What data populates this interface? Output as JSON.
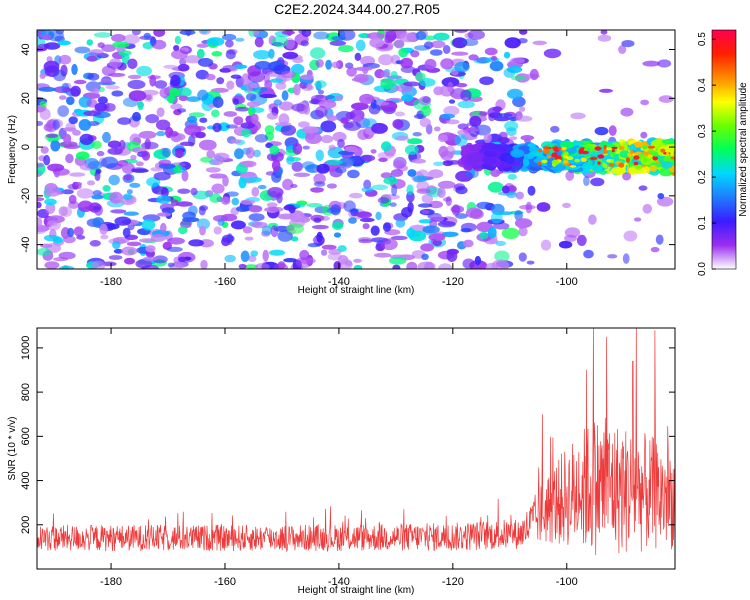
{
  "title": "C2E2.2024.344.00.27.R05",
  "chart_data": [
    {
      "type": "heatmap",
      "xlabel": "Height of straight line (km)",
      "ylabel": "Frequency (Hz)",
      "xlim": [
        -193,
        -81
      ],
      "ylim": [
        -50,
        48
      ],
      "xticks": [
        -180,
        -160,
        -140,
        -120,
        -100
      ],
      "yticks": [
        -40,
        -20,
        0,
        20,
        40
      ],
      "colorbar": {
        "label": "Normalized spectral amplitude",
        "range": [
          0.0,
          0.52
        ],
        "ticks": [
          "0.0",
          "0.1",
          "0.2",
          "0.3",
          "0.4",
          "0.5"
        ],
        "colors": [
          "#ffffff",
          "#9a2ef0",
          "#3a1cff",
          "#1f7dff",
          "#00d8ff",
          "#00ff5a",
          "#6aff00",
          "#ffff00",
          "#ff8a00",
          "#ff2000",
          "#ff0050"
        ]
      },
      "features": {
        "noise_region_x": [
          -193,
          -106
        ],
        "quiet_region_x": [
          -106,
          -81
        ],
        "signal_band_center_hz": -4,
        "signal_band_halfwidth_hz": 5,
        "signal_start_x": -118,
        "peak_amplitude": 0.52
      }
    },
    {
      "type": "line",
      "xlabel": "Height of straight line (km)",
      "ylabel": "SNR (10 * v/v)",
      "xlim": [
        -193,
        -81
      ],
      "ylim": [
        0,
        1090
      ],
      "xticks": [
        -180,
        -160,
        -140,
        -120,
        -100
      ],
      "yticks": [
        200,
        400,
        600,
        800,
        1000
      ],
      "color": "#ee3a3a",
      "envelope": [
        {
          "x": -193,
          "mean": 140,
          "spread": 60
        },
        {
          "x": -150,
          "mean": 140,
          "spread": 60
        },
        {
          "x": -120,
          "mean": 145,
          "spread": 65
        },
        {
          "x": -108,
          "mean": 160,
          "spread": 70
        },
        {
          "x": -104,
          "mean": 260,
          "spread": 150
        },
        {
          "x": -100,
          "mean": 330,
          "spread": 230
        },
        {
          "x": -95,
          "mean": 380,
          "spread": 320
        },
        {
          "x": -90,
          "mean": 360,
          "spread": 300
        },
        {
          "x": -85,
          "mean": 340,
          "spread": 260
        },
        {
          "x": -81,
          "mean": 320,
          "spread": 230
        }
      ],
      "peaks": [
        {
          "x": -104.3,
          "y": 700
        },
        {
          "x": -96.5,
          "y": 900
        },
        {
          "x": -95.3,
          "y": 1090
        },
        {
          "x": -93.0,
          "y": 1050
        },
        {
          "x": -88.4,
          "y": 940
        },
        {
          "x": -87.8,
          "y": 1090
        },
        {
          "x": -84.5,
          "y": 1080
        }
      ]
    }
  ]
}
